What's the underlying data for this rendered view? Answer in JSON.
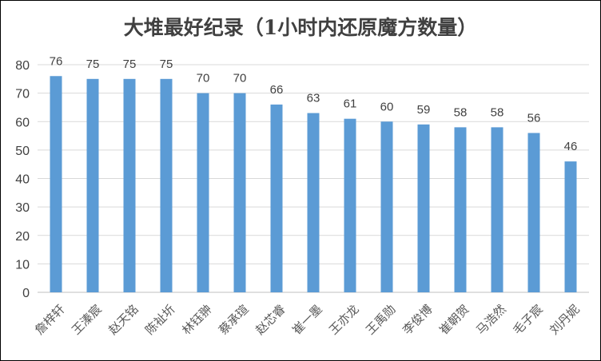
{
  "chart_data": {
    "type": "bar",
    "title": "大堆最好纪录（1小时内还原魔方数量）",
    "xlabel": "",
    "ylabel": "",
    "ylim": [
      0,
      80
    ],
    "yticks": [
      0,
      10,
      20,
      30,
      40,
      50,
      60,
      70,
      80
    ],
    "grid": true,
    "legend": "none",
    "bar_color": "#5b9bd5",
    "categories": [
      "詹梓轩",
      "王溱宸",
      "赵天铭",
      "陈祉圻",
      "林钰翀",
      "蔡承瑄",
      "赵芯睿",
      "崔一墨",
      "王亦龙",
      "王禹勋",
      "李俊博",
      "崔朝贺",
      "马浩然",
      "毛子宸",
      "刘丹妮"
    ],
    "values": [
      76,
      75,
      75,
      75,
      70,
      70,
      66,
      63,
      61,
      60,
      59,
      58,
      58,
      56,
      46
    ],
    "data_labels": true
  }
}
